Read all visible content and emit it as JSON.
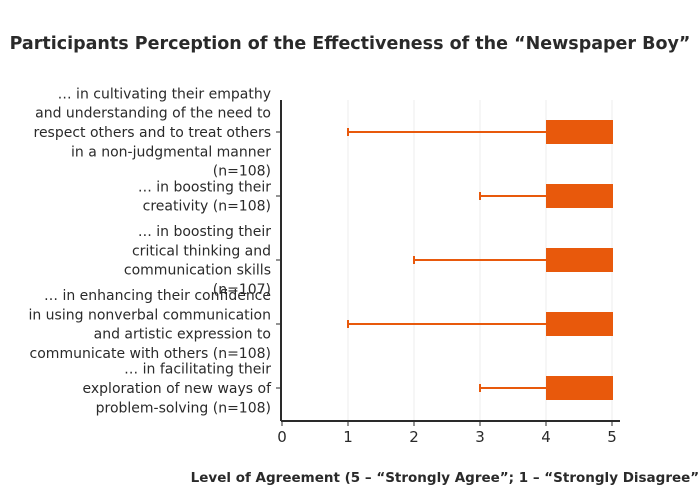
{
  "chart_data": {
    "type": "box",
    "orientation": "horizontal",
    "title": "Participants Perception of the Effectiveness of the “Newspaper Boy”",
    "xlabel": "Level of Agreement (5 – “Strongly Agree”; 1 – “Strongly Disagree”)",
    "ylabel": "",
    "xlim": [
      0,
      5
    ],
    "x_ticks": [
      "0",
      "1",
      "2",
      "3",
      "4",
      "5"
    ],
    "grid": true,
    "color": "#e8590c",
    "categories": [
      "… in cultivating their empathy and understanding of the need to respect others and to treat others in a non-judgmental manner (n=108)",
      "… in boosting their creativity (n=108)",
      "… in boosting their critical thinking and communication skills (n=107)",
      "… in enhancing their confidence in using nonverbal communication and artistic expression to communicate with others (n=108)",
      "… in facilitating their exploration of new ways of problem-solving (n=108)"
    ],
    "category_lines": [
      [
        "… in cultivating their empathy",
        "and understanding of the need to",
        "respect others and to treat others",
        "in a non-judgmental manner",
        "(n=108)"
      ],
      [
        "… in boosting their",
        "creativity (n=108)"
      ],
      [
        "… in boosting their",
        "critical thinking and",
        "communication skills",
        "(n=107)"
      ],
      [
        "… in enhancing their confidence",
        "in using nonverbal communication",
        "and artistic expression to",
        "communicate with others (n=108)"
      ],
      [
        "… in facilitating their",
        "exploration of new ways of",
        "problem-solving (n=108)"
      ]
    ],
    "series": [
      {
        "min": 1,
        "q1": 4,
        "median": 5,
        "q3": 5,
        "max": 5
      },
      {
        "min": 3,
        "q1": 4,
        "median": 5,
        "q3": 5,
        "max": 5
      },
      {
        "min": 2,
        "q1": 4,
        "median": 5,
        "q3": 5,
        "max": 5
      },
      {
        "min": 1,
        "q1": 4,
        "median": 5,
        "q3": 5,
        "max": 5
      },
      {
        "min": 3,
        "q1": 4,
        "median": 5,
        "q3": 5,
        "max": 5
      }
    ]
  }
}
